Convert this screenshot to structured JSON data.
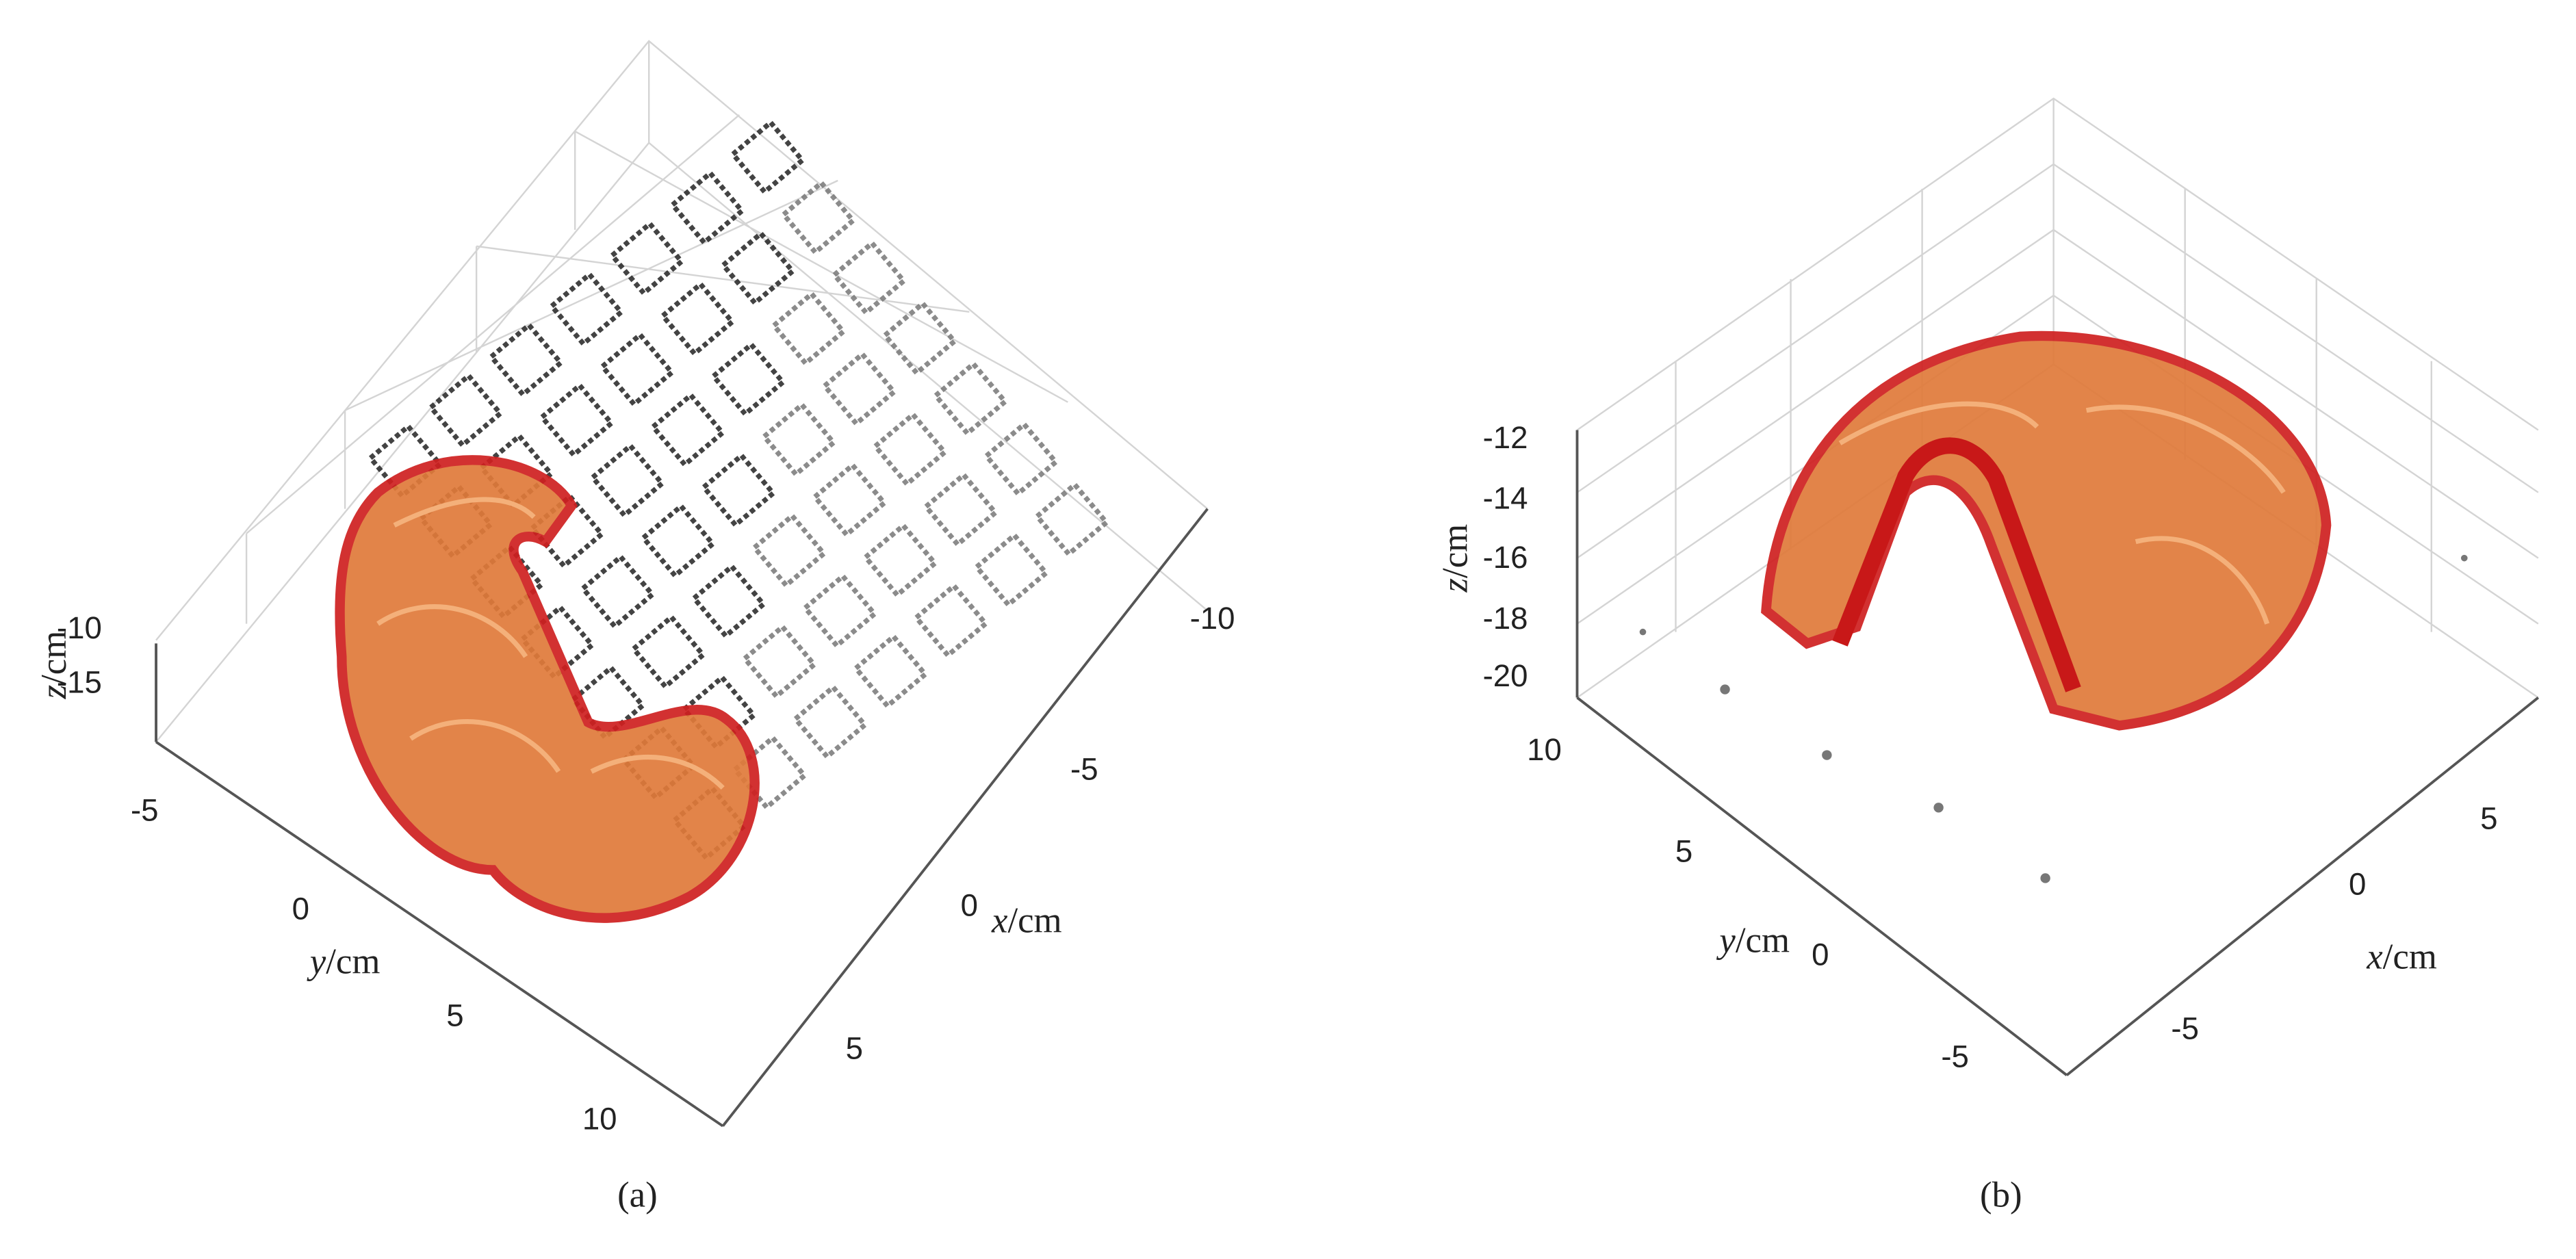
{
  "panels": [
    {
      "caption": "(a)",
      "axes": {
        "z": {
          "var": "z",
          "unit": "/cm",
          "ticks": [
            "-10",
            "-15"
          ]
        },
        "y": {
          "var": "y",
          "unit": "/cm",
          "ticks": [
            "-5",
            "0",
            "5",
            "10"
          ]
        },
        "x": {
          "var": "x",
          "unit": "/cm",
          "ticks": [
            "5",
            "0",
            "-5",
            "-10"
          ]
        }
      }
    },
    {
      "caption": "(b)",
      "axes": {
        "z": {
          "var": "z",
          "unit": "/cm",
          "ticks": [
            "-12",
            "-14",
            "-16",
            "-18",
            "-20"
          ]
        },
        "y": {
          "var": "y",
          "unit": "/cm",
          "ticks": [
            "10",
            "5",
            "0",
            "-5"
          ]
        },
        "x": {
          "var": "x",
          "unit": "/cm",
          "ticks": [
            "-5",
            "0",
            "5"
          ]
        }
      }
    }
  ]
}
